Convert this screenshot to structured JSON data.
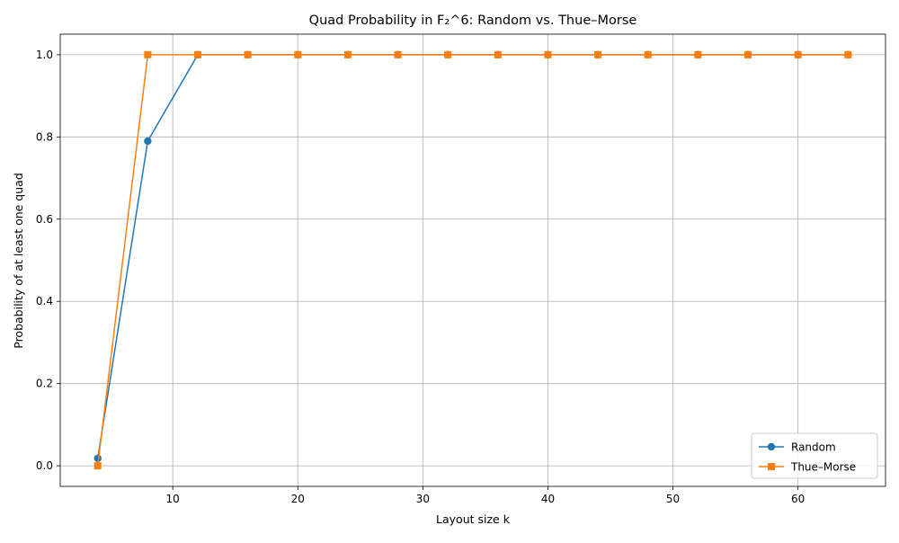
{
  "chart_data": {
    "type": "line",
    "title": "Quad Probability in F₂^6: Random vs. Thue–Morse",
    "xlabel": "Layout size k",
    "ylabel": "Probability of at least one quad",
    "xlim": [
      1.0,
      67.0
    ],
    "ylim": [
      -0.05,
      1.05
    ],
    "xticks": [
      10,
      20,
      30,
      40,
      50,
      60
    ],
    "yticks": [
      0.0,
      0.2,
      0.4,
      0.6,
      0.8,
      1.0
    ],
    "x": [
      4,
      8,
      12,
      16,
      20,
      24,
      28,
      32,
      36,
      40,
      44,
      48,
      52,
      56,
      60,
      64
    ],
    "series": [
      {
        "name": "Random",
        "color": "#1f77b4",
        "marker": "circle",
        "values": [
          0.018,
          0.79,
          1.0,
          1.0,
          1.0,
          1.0,
          1.0,
          1.0,
          1.0,
          1.0,
          1.0,
          1.0,
          1.0,
          1.0,
          1.0,
          1.0
        ]
      },
      {
        "name": "Thue–Morse",
        "color": "#ff7f0e",
        "marker": "square",
        "values": [
          0.0,
          1.0,
          1.0,
          1.0,
          1.0,
          1.0,
          1.0,
          1.0,
          1.0,
          1.0,
          1.0,
          1.0,
          1.0,
          1.0,
          1.0,
          1.0
        ]
      }
    ],
    "grid": true,
    "legend": "lower-right"
  }
}
